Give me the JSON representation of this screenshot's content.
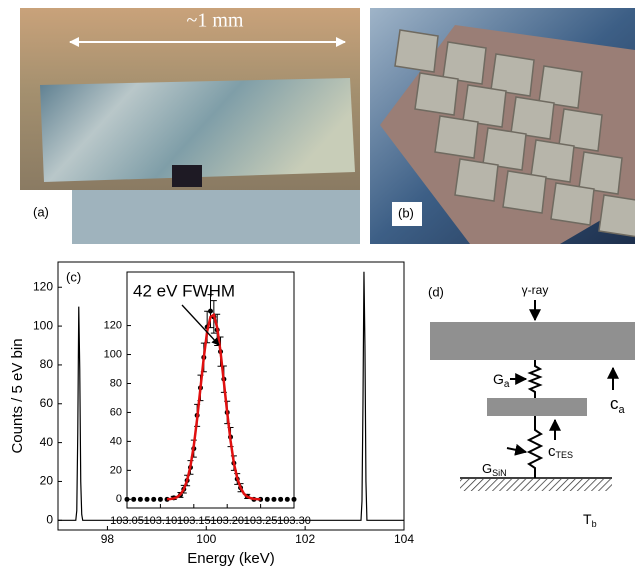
{
  "panels": {
    "a": {
      "label": "(a)",
      "scale": "~1 mm"
    },
    "b": {
      "label": "(b)"
    }
  },
  "chart_data": [
    {
      "type": "line",
      "panel_label": "(c)",
      "ylabel": "Counts / 5 eV bin",
      "xlabel": "Energy (keV)",
      "xlim": [
        97,
        104
      ],
      "xticks": [
        98,
        100,
        102,
        104
      ],
      "ylim": [
        -5,
        133
      ],
      "yticks": [
        0,
        20,
        40,
        60,
        80,
        100,
        120
      ],
      "series": [
        {
          "color": "#000000",
          "x": [
            97.0,
            97.36,
            97.38,
            97.4,
            97.42,
            97.44,
            97.46,
            97.48,
            97.5,
            103.1,
            103.13,
            103.15,
            103.17,
            103.19,
            103.21,
            103.23,
            103.25,
            104.0
          ],
          "values": [
            0,
            0,
            5,
            45,
            110,
            78,
            20,
            3,
            0,
            0,
            0,
            10,
            60,
            128,
            90,
            20,
            0,
            0
          ]
        }
      ]
    },
    {
      "type": "scatter",
      "annotation": "42 eV FWHM",
      "xlim": [
        103.05,
        103.3
      ],
      "xticks": [
        103.05,
        {
          "value": 103.1,
          "label": "103.10"
        },
        103.15,
        {
          "value": 103.2,
          "label": "103.20"
        },
        103.25,
        {
          "value": 103.3,
          "label": "103.30"
        }
      ],
      "ylim": [
        -6,
        157
      ],
      "yticks": [
        0,
        20,
        40,
        60,
        80,
        100,
        120
      ],
      "series": [
        {
          "color": "#000000",
          "mode": "markers",
          "x": [
            103.05,
            103.06,
            103.07,
            103.08,
            103.09,
            103.1,
            103.11,
            103.12,
            103.13,
            103.135,
            103.14,
            103.145,
            103.15,
            103.155,
            103.16,
            103.165,
            103.17,
            103.175,
            103.18,
            103.185,
            103.19,
            103.195,
            103.2,
            103.205,
            103.21,
            103.215,
            103.22,
            103.23,
            103.24,
            103.25,
            103.26,
            103.27,
            103.28,
            103.29,
            103.3
          ],
          "values": [
            0,
            0,
            0,
            0,
            0,
            0,
            0,
            1,
            3,
            7,
            13,
            22,
            35,
            58,
            77,
            98,
            119,
            130,
            126,
            117,
            102,
            83,
            60,
            43,
            25,
            14,
            8,
            2,
            0,
            0,
            0,
            0,
            0,
            0,
            0
          ],
          "errors": [
            0,
            0,
            0,
            0,
            0,
            0,
            0,
            1,
            1.7,
            2.6,
            3.6,
            4.7,
            5.9,
            7.6,
            8.8,
            9.9,
            10.9,
            11.4,
            11.2,
            10.8,
            10.1,
            9.1,
            7.7,
            6.6,
            5,
            3.7,
            2.8,
            1.4,
            0,
            0,
            0,
            0,
            0,
            0,
            0
          ]
        },
        {
          "color": "#e01010",
          "mode": "line",
          "x": [
            103.11,
            103.115,
            103.12,
            103.125,
            103.13,
            103.135,
            103.14,
            103.145,
            103.15,
            103.155,
            103.16,
            103.165,
            103.17,
            103.175,
            103.18,
            103.185,
            103.19,
            103.195,
            103.2,
            103.205,
            103.21,
            103.215,
            103.22,
            103.225,
            103.23,
            103.235,
            103.24,
            103.245,
            103.25
          ],
          "values": [
            0.1,
            0.2,
            0.6,
            1.5,
            3.4,
            6.9,
            13,
            22.9,
            37,
            55.6,
            77,
            98,
            116,
            126,
            127.5,
            118.5,
            102,
            81,
            60,
            40.6,
            25,
            14.7,
            8,
            3.9,
            1.8,
            0.8,
            0.3,
            0.1,
            0
          ]
        }
      ]
    }
  ],
  "diagram": {
    "label": "(d)",
    "gamma": "γ-ray",
    "ga": {
      "main": "G",
      "sub": "a"
    },
    "ca": {
      "main": "c",
      "sub": "a"
    },
    "gsin": {
      "main": "G",
      "sub": "SiN"
    },
    "ctes": {
      "main": "c",
      "sub": "TES"
    },
    "tb": {
      "main": "T",
      "sub": "b"
    }
  }
}
